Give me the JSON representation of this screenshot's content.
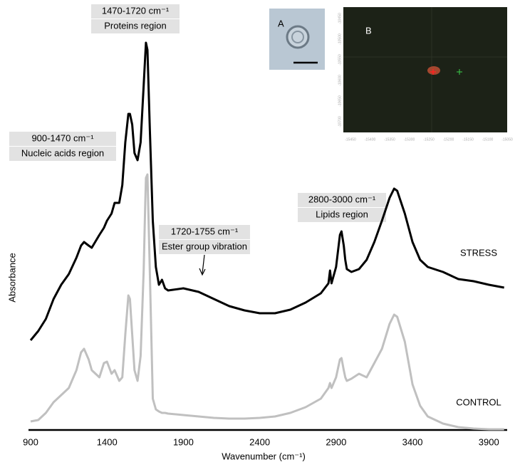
{
  "chart_data": {
    "type": "line",
    "xlabel": "Wavenumber (cm⁻¹)",
    "ylabel": "Absorbance",
    "x": [
      900,
      950,
      1000,
      1050,
      1100,
      1150,
      1200,
      1230,
      1250,
      1280,
      1300,
      1350,
      1380,
      1400,
      1430,
      1450,
      1480,
      1500,
      1520,
      1540,
      1550,
      1565,
      1580,
      1600,
      1620,
      1640,
      1650,
      1655,
      1665,
      1680,
      1700,
      1720,
      1740,
      1760,
      1780,
      1800,
      1900,
      2000,
      2100,
      2200,
      2300,
      2400,
      2500,
      2600,
      2700,
      2800,
      2850,
      2860,
      2870,
      2900,
      2925,
      2935,
      2950,
      2960,
      2970,
      3000,
      3050,
      3100,
      3150,
      3200,
      3250,
      3280,
      3300,
      3350,
      3400,
      3450,
      3500,
      3600,
      3700,
      3800,
      3900,
      4000
    ],
    "series": [
      {
        "name": "STRESS",
        "color": "#000000",
        "values": [
          126,
          139,
          156,
          184,
          204,
          219,
          242,
          259,
          264,
          259,
          256,
          274,
          284,
          294,
          304,
          319,
          319,
          344,
          404,
          444,
          444,
          429,
          389,
          379,
          404,
          484,
          524,
          544,
          534,
          424,
          294,
          229,
          204,
          211,
          199,
          196,
          199,
          194,
          184,
          174,
          168,
          164,
          164,
          169,
          179,
          192,
          206,
          224,
          206,
          229,
          274,
          279,
          259,
          239,
          226,
          222,
          226,
          239,
          264,
          294,
          326,
          339,
          336,
          304,
          264,
          239,
          229,
          222,
          212,
          209,
          204,
          200
        ]
      },
      {
        "name": "CONTROL",
        "color": "#c0c0c0",
        "values": [
          12,
          14,
          24,
          39,
          49,
          59,
          84,
          109,
          114,
          99,
          84,
          74,
          94,
          96,
          79,
          84,
          69,
          74,
          134,
          189,
          184,
          134,
          84,
          69,
          104,
          224,
          314,
          354,
          359,
          224,
          44,
          29,
          26,
          24,
          24,
          23,
          21,
          19,
          17,
          16,
          16,
          17,
          19,
          24,
          32,
          44,
          59,
          66,
          59,
          74,
          99,
          101,
          84,
          74,
          69,
          72,
          79,
          74,
          94,
          114,
          149,
          162,
          159,
          124,
          64,
          34,
          19,
          9,
          4,
          2,
          1,
          1
        ]
      }
    ],
    "xlim": [
      886,
      4020
    ],
    "xticks": [
      900,
      1400,
      1900,
      2400,
      2900,
      3400,
      3900
    ],
    "ylim": [
      0,
      564
    ],
    "annotations": [
      {
        "lines": [
          "1470-1720 cm⁻¹",
          "Proteins region"
        ]
      },
      {
        "lines": [
          "900-1470 cm⁻¹",
          "Nucleic acids region"
        ]
      },
      {
        "lines": [
          "1720-1755 cm⁻¹",
          "Ester group vibration"
        ]
      },
      {
        "lines": [
          "2800-3000 cm⁻¹",
          "Lipids region"
        ]
      }
    ]
  },
  "insets": {
    "a_label": "A",
    "b_label": "B",
    "b_xticks": [
      "-15450",
      "-15400",
      "-15350",
      "-15300",
      "-15250",
      "-15200",
      "-15150",
      "-15100",
      "-15050"
    ],
    "b_yticks": [
      "-10450",
      "-10500",
      "-10550",
      "-10600",
      "-10650",
      "-10700"
    ]
  }
}
